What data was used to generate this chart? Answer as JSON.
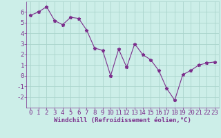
{
  "x": [
    0,
    1,
    2,
    3,
    4,
    5,
    6,
    7,
    8,
    9,
    10,
    11,
    12,
    13,
    14,
    15,
    16,
    17,
    18,
    19,
    20,
    21,
    22,
    23
  ],
  "y": [
    5.7,
    6.0,
    6.5,
    5.2,
    4.8,
    5.5,
    5.4,
    4.3,
    2.6,
    2.4,
    0.0,
    2.5,
    0.8,
    3.0,
    2.0,
    1.5,
    0.5,
    -1.2,
    -2.3,
    0.1,
    0.5,
    1.0,
    1.2,
    1.3
  ],
  "line_color": "#7b2d8b",
  "marker": "*",
  "background_color": "#cceee8",
  "grid_color": "#aad4cc",
  "xlabel": "Windchill (Refroidissement éolien,°C)",
  "ylim": [
    -3,
    7
  ],
  "xlim": [
    -0.5,
    23.5
  ],
  "yticks": [
    -2,
    -1,
    0,
    1,
    2,
    3,
    4,
    5,
    6
  ],
  "xticks": [
    0,
    1,
    2,
    3,
    4,
    5,
    6,
    7,
    8,
    9,
    10,
    11,
    12,
    13,
    14,
    15,
    16,
    17,
    18,
    19,
    20,
    21,
    22,
    23
  ],
  "axis_label_fontsize": 6.5,
  "tick_fontsize": 6.5
}
